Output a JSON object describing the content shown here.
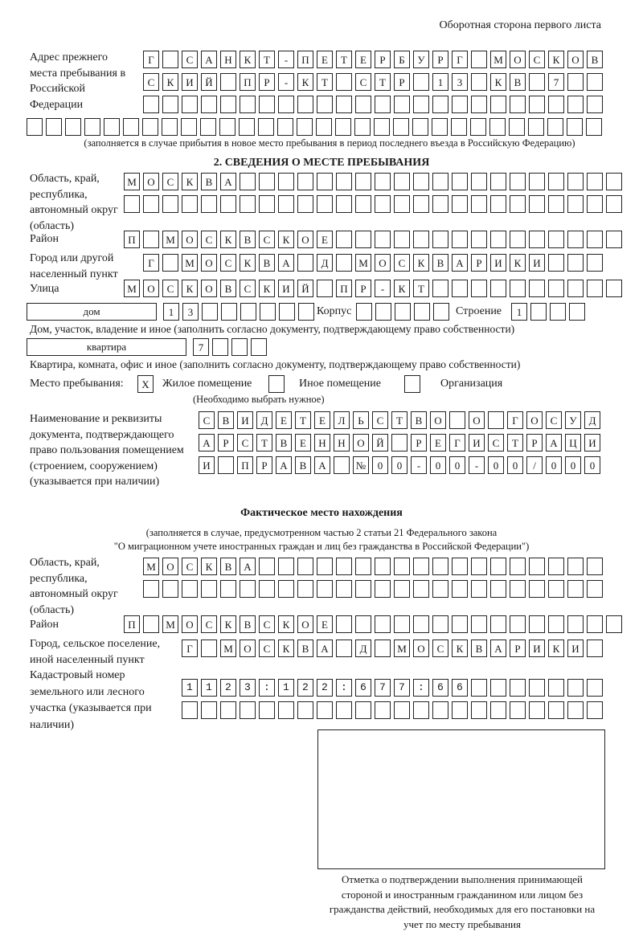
{
  "page_header": "Оборотная сторона первого листа",
  "previous_address": {
    "label": "Адрес прежнего места пребывания в Российской Федерации",
    "rows": [
      "Г САНКТ-ПЕТЕРБУРГ МОСКОВ",
      "СКИЙ ПР-КТ СТР 13 КВ 7  ",
      "                        ",
      "                              "
    ],
    "note": "(заполняется в случае прибытия в новое место пребывания в период последнего въезда в Российскую Федерацию)"
  },
  "section2": {
    "title": "2. СВЕДЕНИЯ О МЕСТЕ ПРЕБЫВАНИЯ",
    "region_label": "Область, край, республика, автономный округ (область)",
    "region_rows": [
      "МОСКВА                    ",
      "                          "
    ],
    "district_label": "Район",
    "district": "П МОСКВСКОЕ               ",
    "city_label": "Город или другой населенный пункт",
    "city": "Г МОСКВА Д МОСКВАРИКИ   ",
    "street_label": "Улица",
    "street": "МОСКОВСКИЙ ПР-КТ          ",
    "house_type": "дом",
    "house": "13      ",
    "korpus_label": "Корпус",
    "korpus": "     ",
    "building_label": "Строение",
    "building": "1   ",
    "house_note": "Дом, участок, владение и иное (заполнить согласно документу, подтверждающему право собственности)",
    "apt_type": "квартира",
    "apt": "7   ",
    "apt_note": "Квартира, комната, офис и иное (заполнить согласно документу, подтверждающему право собственности)",
    "stay_label": "Место пребывания:",
    "stay_options": [
      {
        "label": "Жилое помещение",
        "mark": "Х"
      },
      {
        "label": "Иное помещение",
        "mark": ""
      },
      {
        "label": "Организация",
        "mark": ""
      }
    ],
    "stay_note": "(Необходимо выбрать нужное)",
    "doc_label": "Наименование и реквизиты документа, подтверждающего право пользования помещением (строением, сооружением) (указывается при наличии)",
    "doc_rows": [
      "СВИДЕТЕЛЬСТВО О ГОСУД",
      "АРСТВЕННОЙ РЕГИСТРАЦИ",
      "И ПРАВА №00-00-00/000"
    ]
  },
  "actual": {
    "title": "Фактическое место нахождения",
    "note1": "(заполняется в случае, предусмотренном частью 2 статьи 21 Федерального закона",
    "note2": "\"О миграционном учете иностранных граждан и лиц без гражданства в Российской Федерации\")",
    "region_label": "Область, край, республика, автономный округ (область)",
    "region_rows": [
      "МОСКВА                  ",
      "                        "
    ],
    "district_label": "Район",
    "district": "П МОСКВСКОЕ               ",
    "city_label": "Город, сельское поселение, иной населенный пункт",
    "city": "Г МОСКВА Д МОСКВАРИКИ ",
    "cadastral_label": "Кадастровый номер земельного или лесного участка (указывается при наличии)",
    "cadastral_rows": [
      "1123:122:677:66       ",
      "                      "
    ]
  },
  "stamp_caption": "Отметка о подтверждении выполнения принимающей стороной и иностранным гражданином или лицом без гражданства действий, необходимых для его постановки на учет по месту пребывания"
}
